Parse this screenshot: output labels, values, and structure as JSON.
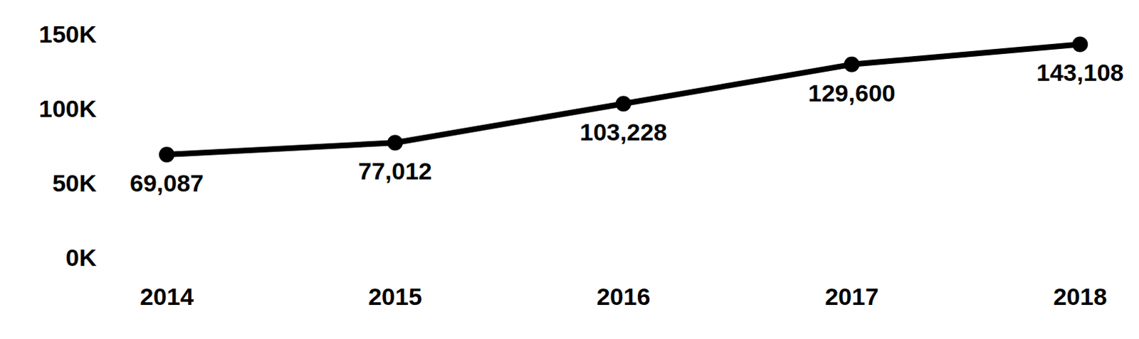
{
  "chart_data": {
    "type": "line",
    "categories": [
      "2014",
      "2015",
      "2016",
      "2017",
      "2018"
    ],
    "values": [
      69087,
      77012,
      103228,
      129600,
      143108
    ],
    "value_labels": [
      "69,087",
      "77,012",
      "103,228",
      "129,600",
      "143,108"
    ],
    "color": "#000000",
    "marker": "circle",
    "line_style": "solid",
    "data_labels": true,
    "grid": false,
    "ylim": [
      0,
      150000
    ],
    "yticks": [
      {
        "value": 0,
        "label": "0K"
      },
      {
        "value": 50000,
        "label": "50K"
      },
      {
        "value": 100000,
        "label": "100K"
      },
      {
        "value": 150000,
        "label": "150K"
      }
    ]
  }
}
